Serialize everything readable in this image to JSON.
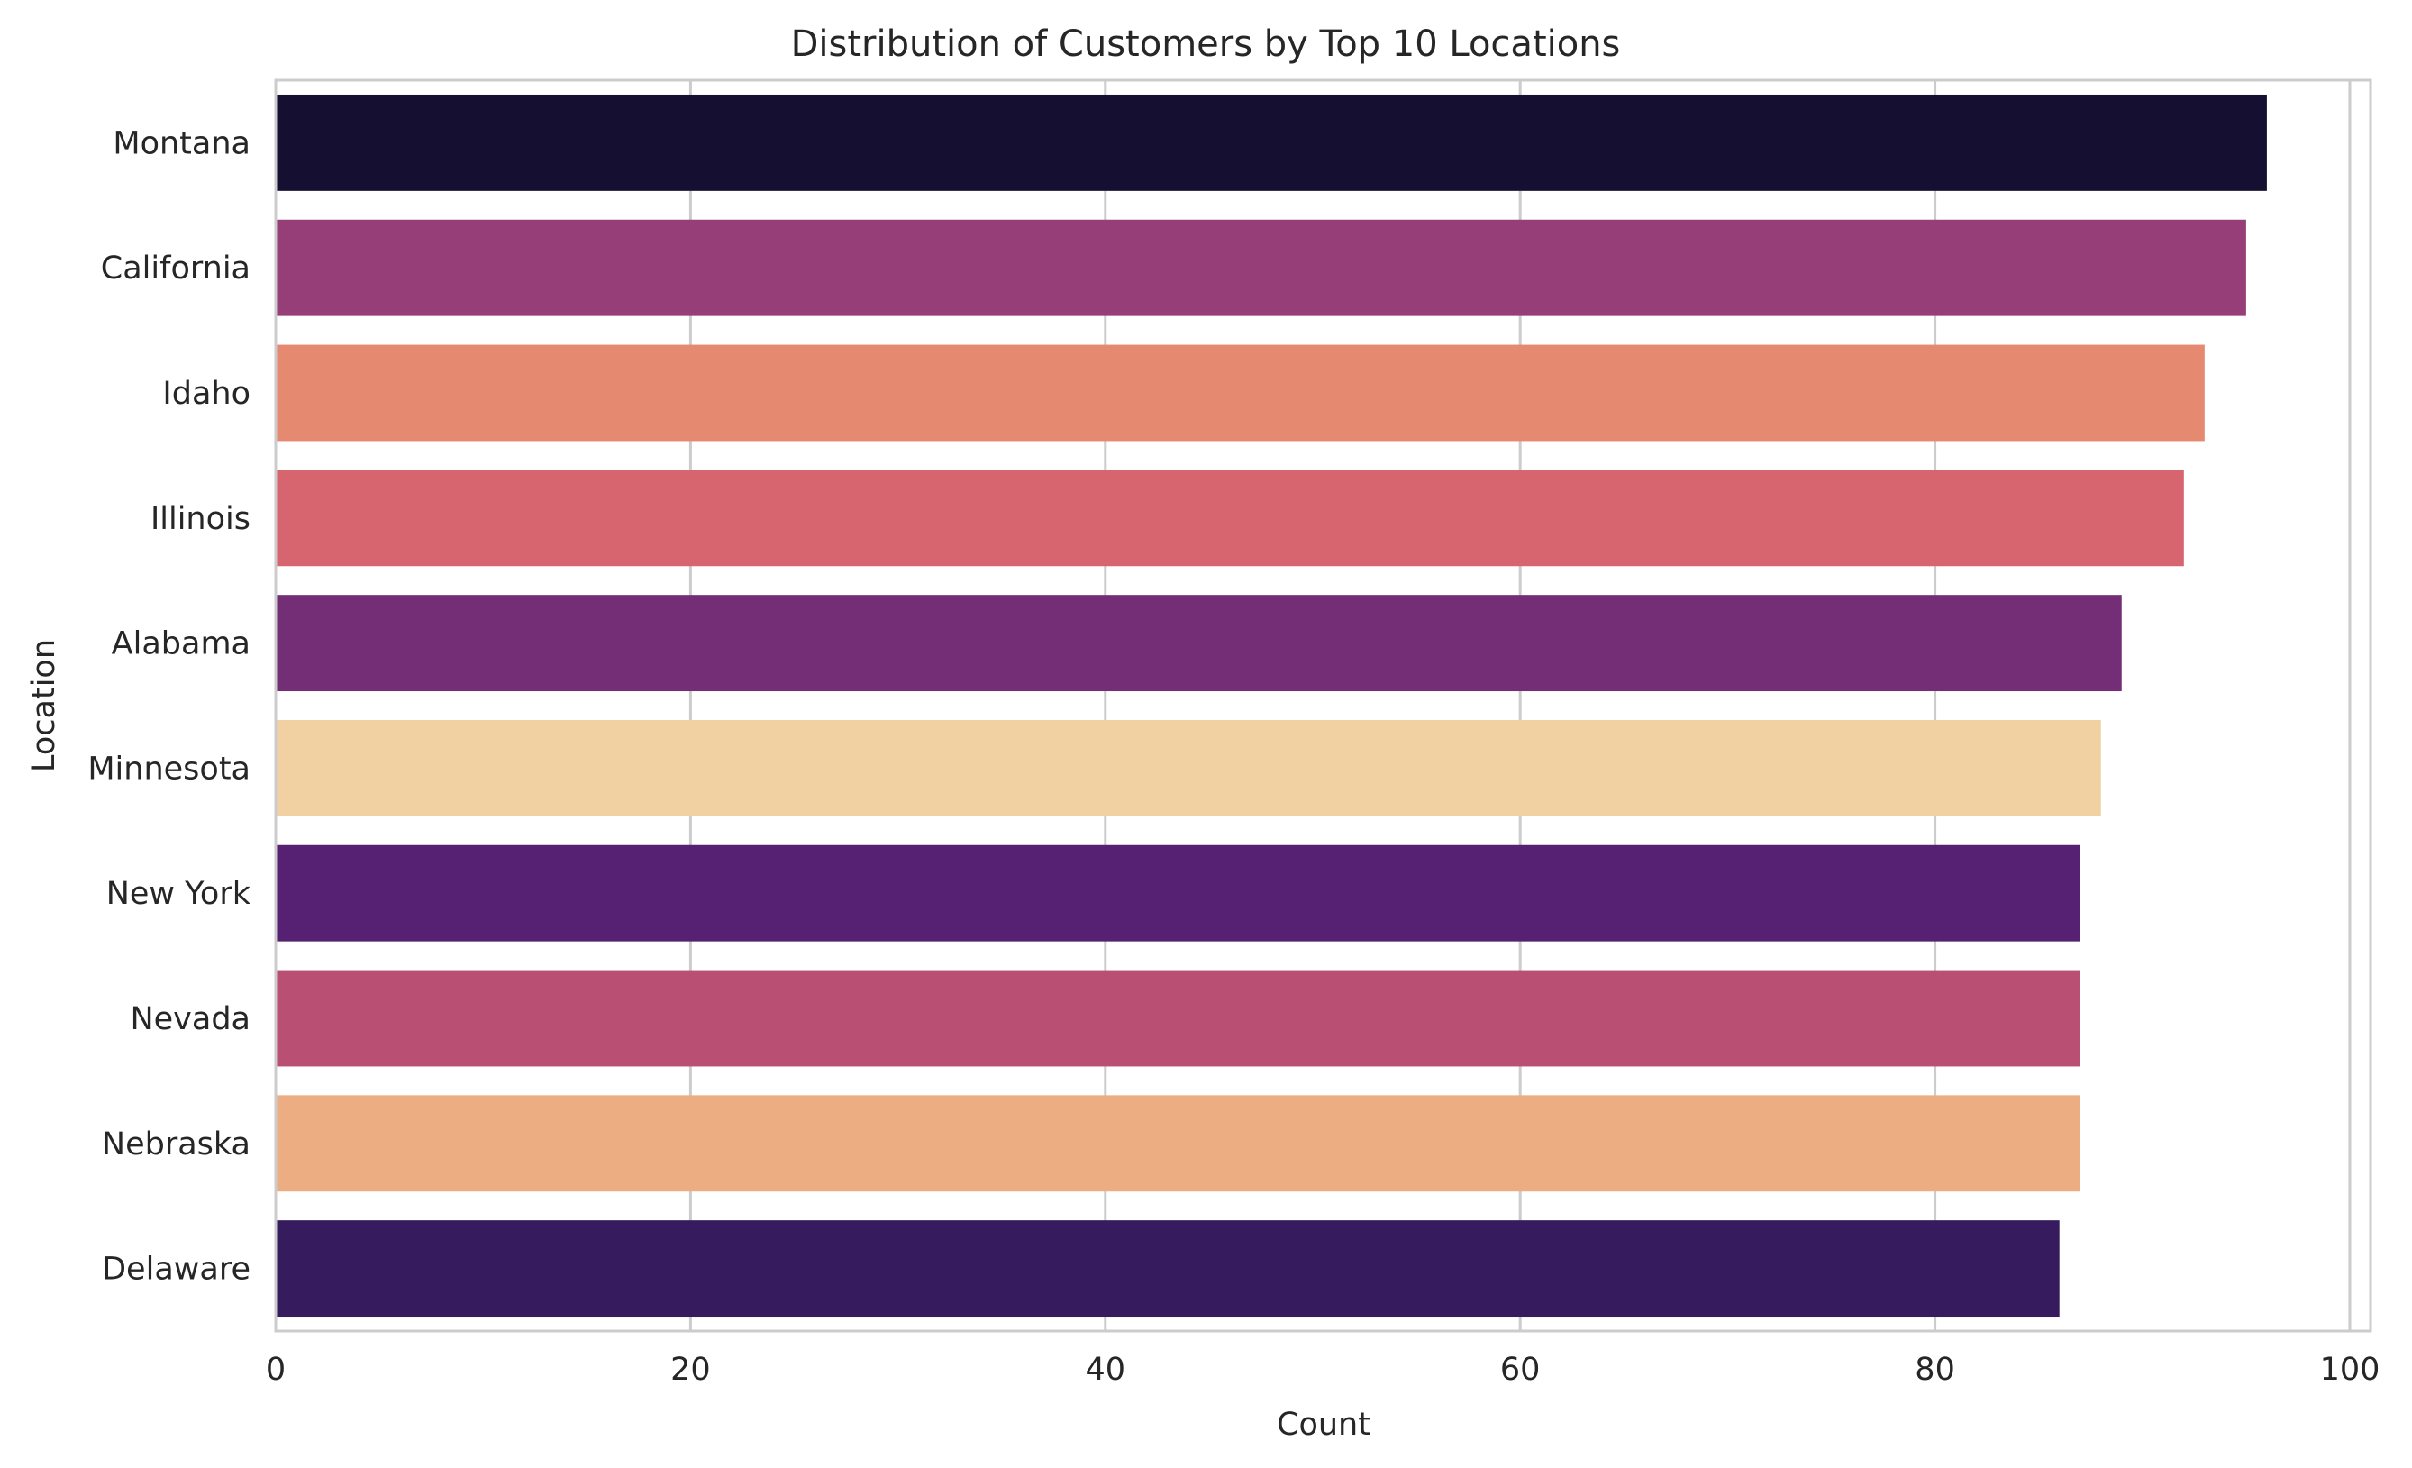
{
  "chart_data": {
    "type": "bar",
    "orientation": "horizontal",
    "title": "Distribution of Customers by Top 10 Locations",
    "xlabel": "Count",
    "ylabel": "Location",
    "xlim": [
      0,
      101
    ],
    "xticks": [
      0,
      20,
      40,
      60,
      80,
      100
    ],
    "grid": true,
    "legend": "none",
    "categories": [
      "Montana",
      "California",
      "Idaho",
      "Illinois",
      "Alabama",
      "Minnesota",
      "New York",
      "Nevada",
      "Nebraska",
      "Delaware"
    ],
    "values": [
      96,
      95,
      93,
      92,
      89,
      88,
      87,
      87,
      87,
      86
    ],
    "colors": [
      "#150f31",
      "#953e77",
      "#e68971",
      "#d6656f",
      "#732e75",
      "#f1d1a2",
      "#562172",
      "#b95074",
      "#ecad83",
      "#361b5e"
    ]
  }
}
